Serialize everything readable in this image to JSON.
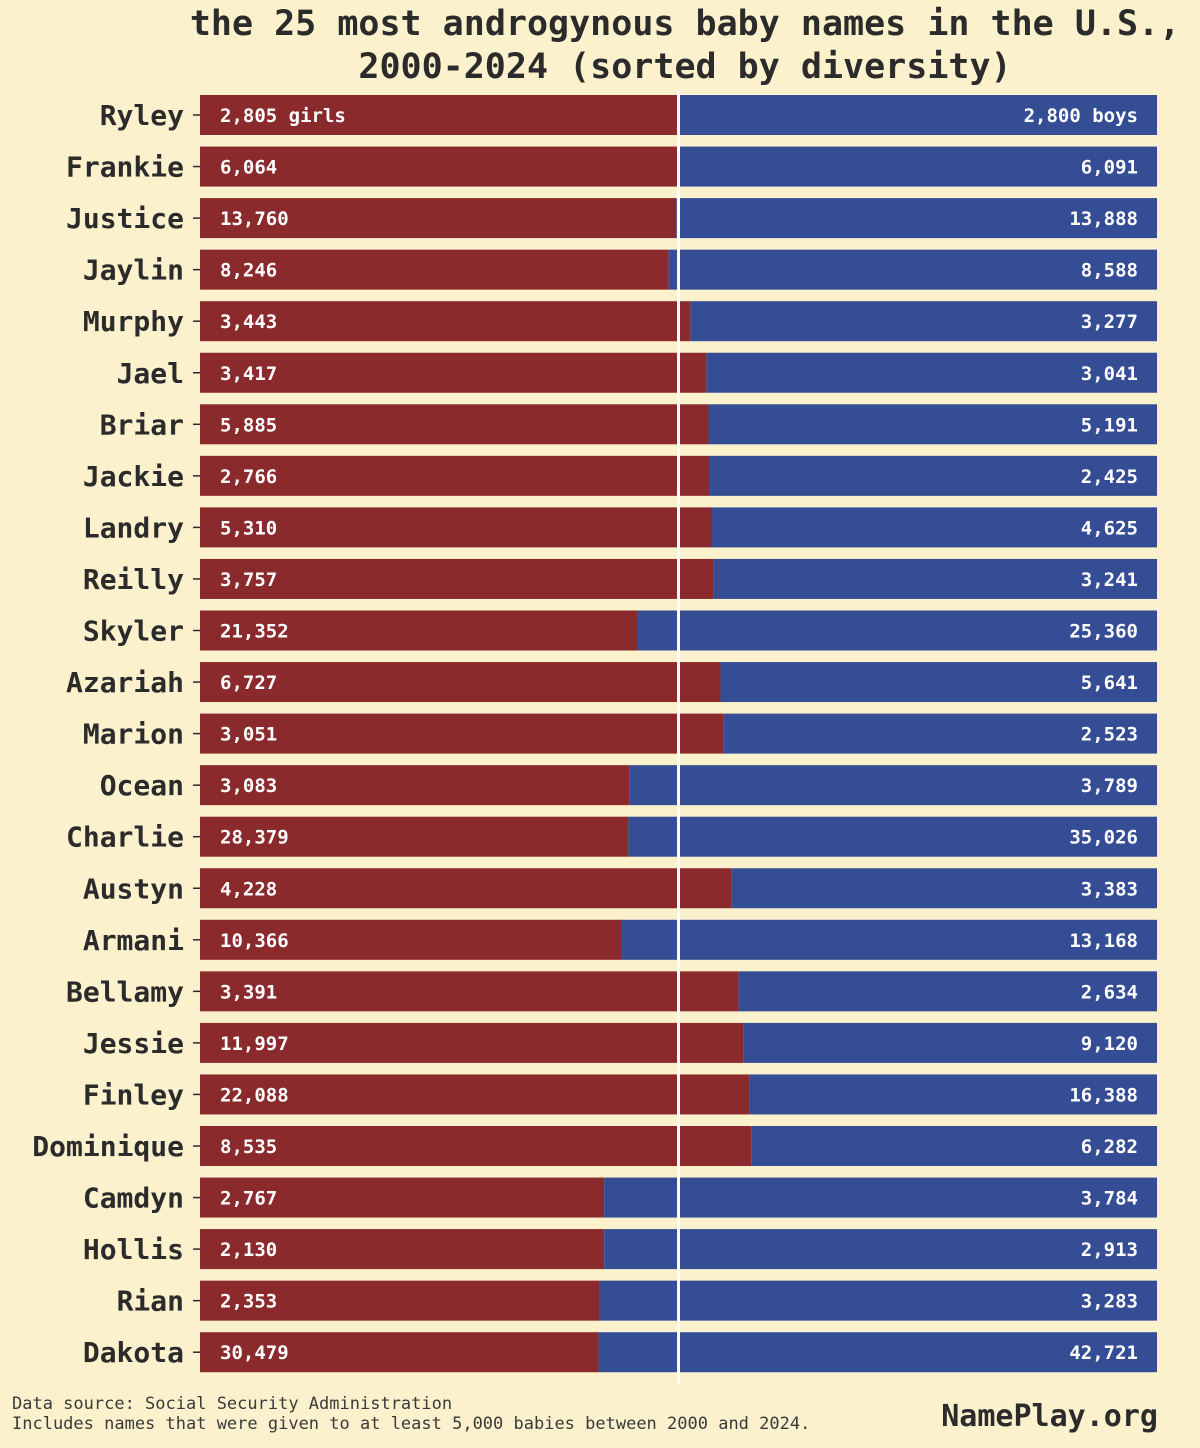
{
  "chart_data": {
    "type": "bar",
    "orientation": "horizontal",
    "stacked": "percent",
    "title": "the 25 most androgynous baby names in the U.S., 2000-2024 (sorted by diversity)",
    "title_lines": [
      "the 25 most androgynous baby names in the U.S.,",
      "2000-2024 (sorted by diversity)"
    ],
    "categories": [
      "Ryley",
      "Frankie",
      "Justice",
      "Jaylin",
      "Murphy",
      "Jael",
      "Briar",
      "Jackie",
      "Landry",
      "Reilly",
      "Skyler",
      "Azariah",
      "Marion",
      "Ocean",
      "Charlie",
      "Austyn",
      "Armani",
      "Bellamy",
      "Jessie",
      "Finley",
      "Dominique",
      "Camdyn",
      "Hollis",
      "Rian",
      "Dakota"
    ],
    "series": [
      {
        "values": [
          2805,
          6064,
          13760,
          8246,
          3443,
          3417,
          5885,
          2766,
          5310,
          3757,
          21352,
          6727,
          3051,
          3083,
          28379,
          4228,
          10366,
          3391,
          11997,
          22088,
          8535,
          2767,
          2130,
          2353,
          30479
        ]
      },
      {
        "values": [
          2800,
          6091,
          13888,
          8588,
          3277,
          3041,
          5191,
          2425,
          4625,
          3241,
          25360,
          5641,
          2523,
          3789,
          35026,
          3383,
          13168,
          2634,
          9120,
          16388,
          6282,
          3784,
          2913,
          3283,
          42721
        ]
      }
    ],
    "girls_labels": [
      "2,805 girls",
      "6,064",
      "13,760",
      "8,246",
      "3,443",
      "3,417",
      "5,885",
      "2,766",
      "5,310",
      "3,757",
      "21,352",
      "6,727",
      "3,051",
      "3,083",
      "28,379",
      "4,228",
      "10,366",
      "3,391",
      "11,997",
      "22,088",
      "8,535",
      "2,767",
      "2,130",
      "2,353",
      "30,479"
    ],
    "boys_labels": [
      "2,800 boys",
      "6,091",
      "13,888",
      "8,588",
      "3,277",
      "3,041",
      "5,191",
      "2,425",
      "4,625",
      "3,241",
      "25,360",
      "5,641",
      "2,523",
      "3,789",
      "35,026",
      "3,383",
      "13,168",
      "2,634",
      "9,120",
      "16,388",
      "6,282",
      "3,784",
      "2,913",
      "3,283",
      "42,721"
    ],
    "xlim": [
      0,
      1
    ],
    "reference_line": 0.5,
    "grid": false,
    "legend": "none",
    "colors": {
      "girls": "#8b2a2c",
      "boys": "#344d94",
      "background": "#fbf1cd",
      "midline": "#ffffff",
      "text": "#2b2b2b"
    }
  },
  "footer": {
    "source": "Data source: Social Security Administration",
    "criteria": "Includes names that were given to at least 5,000 babies between 2000 and 2024.",
    "brand": "NamePlay.org"
  }
}
